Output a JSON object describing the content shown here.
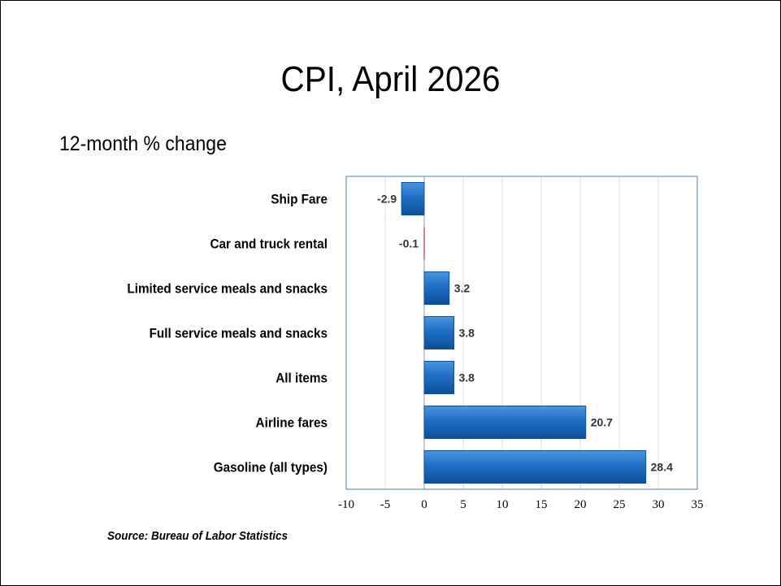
{
  "slide": {
    "title": "CPI, April 2026",
    "subtitle": "12-month % change",
    "source": "Source: Bureau of Labor Statistics"
  },
  "colors": {
    "bar_fill": "#1f6fc6",
    "bar_light": "#4a95e0",
    "bar_dark": "#0d4f9a",
    "plot_border": "#4f7fae",
    "gridline": "#dcdcdc",
    "negative_marker": "#8b1a1a"
  },
  "chart_data": {
    "type": "bar",
    "orientation": "horizontal",
    "categories": [
      "Ship Fare",
      "Car and truck rental",
      "Limited service meals and snacks",
      "Full service meals and snacks",
      "All items",
      "Airline fares",
      "Gasoline (all types)"
    ],
    "values": [
      -2.9,
      -0.1,
      3.2,
      3.8,
      3.8,
      20.7,
      28.4
    ],
    "value_labels": [
      "-2.9",
      "-0.1",
      "3.2",
      "3.8",
      "3.8",
      "20.7",
      "28.4"
    ],
    "xlim": [
      -10,
      35
    ],
    "xticks": [
      -10,
      -5,
      0,
      5,
      10,
      15,
      20,
      25,
      30,
      35
    ],
    "xtick_labels": [
      "-10",
      "-5",
      "0",
      "5",
      "10",
      "15",
      "20",
      "25",
      "30",
      "35"
    ],
    "title": "CPI, April 2026",
    "subtitle": "12-month % change",
    "grid": true,
    "legend": "none"
  }
}
